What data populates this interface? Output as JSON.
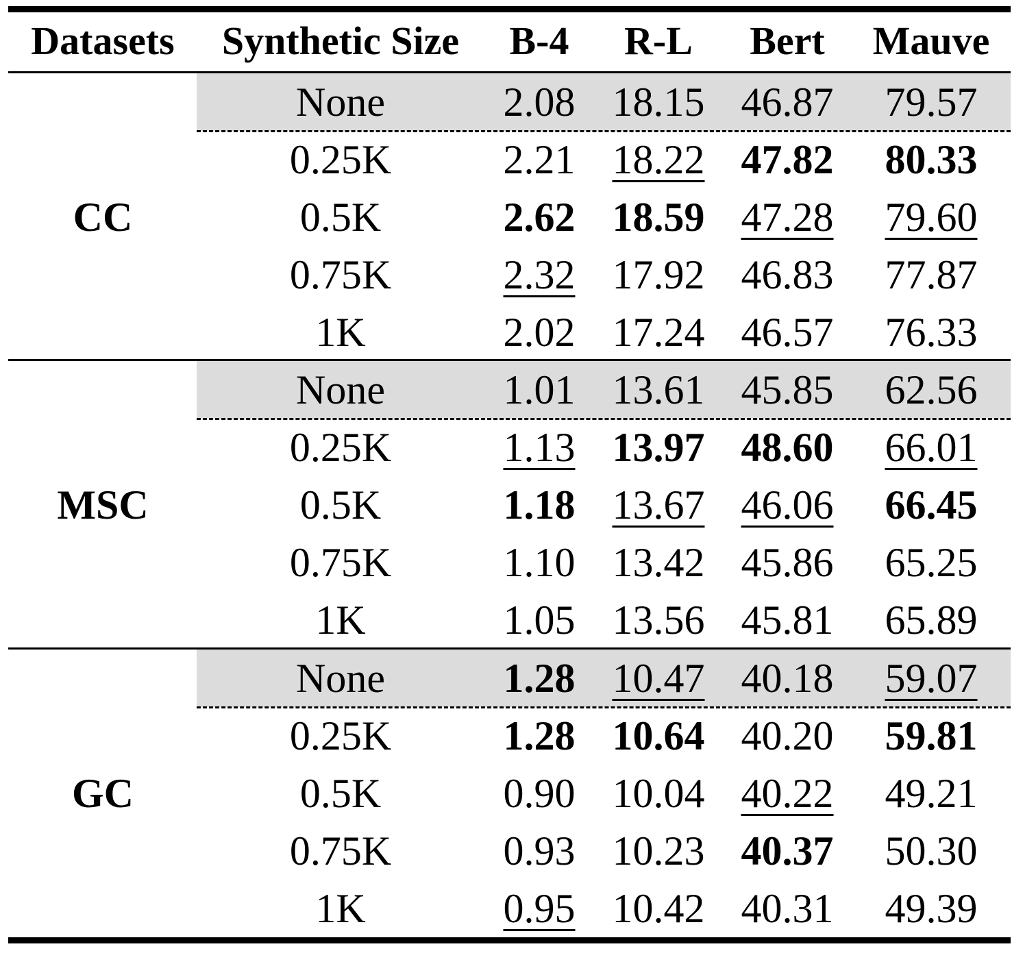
{
  "table": {
    "headers": [
      "Datasets",
      "Synthetic Size",
      "B-4",
      "R-L",
      "Bert",
      "Mauve"
    ],
    "groups": [
      {
        "dataset": "CC",
        "rows": [
          {
            "size": "None",
            "shaded": true,
            "values": [
              {
                "v": "2.08",
                "bold": false,
                "underline": false
              },
              {
                "v": "18.15",
                "bold": false,
                "underline": false
              },
              {
                "v": "46.87",
                "bold": false,
                "underline": false
              },
              {
                "v": "79.57",
                "bold": false,
                "underline": false
              }
            ]
          },
          {
            "size": "0.25K",
            "shaded": false,
            "values": [
              {
                "v": "2.21",
                "bold": false,
                "underline": false
              },
              {
                "v": "18.22",
                "bold": false,
                "underline": true
              },
              {
                "v": "47.82",
                "bold": true,
                "underline": false
              },
              {
                "v": "80.33",
                "bold": true,
                "underline": false
              }
            ]
          },
          {
            "size": "0.5K",
            "shaded": false,
            "values": [
              {
                "v": "2.62",
                "bold": true,
                "underline": false
              },
              {
                "v": "18.59",
                "bold": true,
                "underline": false
              },
              {
                "v": "47.28",
                "bold": false,
                "underline": true
              },
              {
                "v": "79.60",
                "bold": false,
                "underline": true
              }
            ]
          },
          {
            "size": "0.75K",
            "shaded": false,
            "values": [
              {
                "v": "2.32",
                "bold": false,
                "underline": true
              },
              {
                "v": "17.92",
                "bold": false,
                "underline": false
              },
              {
                "v": "46.83",
                "bold": false,
                "underline": false
              },
              {
                "v": "77.87",
                "bold": false,
                "underline": false
              }
            ]
          },
          {
            "size": "1K",
            "shaded": false,
            "values": [
              {
                "v": "2.02",
                "bold": false,
                "underline": false
              },
              {
                "v": "17.24",
                "bold": false,
                "underline": false
              },
              {
                "v": "46.57",
                "bold": false,
                "underline": false
              },
              {
                "v": "76.33",
                "bold": false,
                "underline": false
              }
            ]
          }
        ]
      },
      {
        "dataset": "MSC",
        "rows": [
          {
            "size": "None",
            "shaded": true,
            "values": [
              {
                "v": "1.01",
                "bold": false,
                "underline": false
              },
              {
                "v": "13.61",
                "bold": false,
                "underline": false
              },
              {
                "v": "45.85",
                "bold": false,
                "underline": false
              },
              {
                "v": "62.56",
                "bold": false,
                "underline": false
              }
            ]
          },
          {
            "size": "0.25K",
            "shaded": false,
            "values": [
              {
                "v": "1.13",
                "bold": false,
                "underline": true
              },
              {
                "v": "13.97",
                "bold": true,
                "underline": false
              },
              {
                "v": "48.60",
                "bold": true,
                "underline": false
              },
              {
                "v": "66.01",
                "bold": false,
                "underline": true
              }
            ]
          },
          {
            "size": "0.5K",
            "shaded": false,
            "values": [
              {
                "v": "1.18",
                "bold": true,
                "underline": false
              },
              {
                "v": "13.67",
                "bold": false,
                "underline": true
              },
              {
                "v": "46.06",
                "bold": false,
                "underline": true
              },
              {
                "v": "66.45",
                "bold": true,
                "underline": false
              }
            ]
          },
          {
            "size": "0.75K",
            "shaded": false,
            "values": [
              {
                "v": "1.10",
                "bold": false,
                "underline": false
              },
              {
                "v": "13.42",
                "bold": false,
                "underline": false
              },
              {
                "v": "45.86",
                "bold": false,
                "underline": false
              },
              {
                "v": "65.25",
                "bold": false,
                "underline": false
              }
            ]
          },
          {
            "size": "1K",
            "shaded": false,
            "values": [
              {
                "v": "1.05",
                "bold": false,
                "underline": false
              },
              {
                "v": "13.56",
                "bold": false,
                "underline": false
              },
              {
                "v": "45.81",
                "bold": false,
                "underline": false
              },
              {
                "v": "65.89",
                "bold": false,
                "underline": false
              }
            ]
          }
        ]
      },
      {
        "dataset": "GC",
        "rows": [
          {
            "size": "None",
            "shaded": true,
            "values": [
              {
                "v": "1.28",
                "bold": true,
                "underline": false
              },
              {
                "v": "10.47",
                "bold": false,
                "underline": true
              },
              {
                "v": "40.18",
                "bold": false,
                "underline": false
              },
              {
                "v": "59.07",
                "bold": false,
                "underline": true
              }
            ]
          },
          {
            "size": "0.25K",
            "shaded": false,
            "values": [
              {
                "v": "1.28",
                "bold": true,
                "underline": false
              },
              {
                "v": "10.64",
                "bold": true,
                "underline": false
              },
              {
                "v": "40.20",
                "bold": false,
                "underline": false
              },
              {
                "v": "59.81",
                "bold": true,
                "underline": false
              }
            ]
          },
          {
            "size": "0.5K",
            "shaded": false,
            "values": [
              {
                "v": "0.90",
                "bold": false,
                "underline": false
              },
              {
                "v": "10.04",
                "bold": false,
                "underline": false
              },
              {
                "v": "40.22",
                "bold": false,
                "underline": true
              },
              {
                "v": "49.21",
                "bold": false,
                "underline": false
              }
            ]
          },
          {
            "size": "0.75K",
            "shaded": false,
            "values": [
              {
                "v": "0.93",
                "bold": false,
                "underline": false
              },
              {
                "v": "10.23",
                "bold": false,
                "underline": false
              },
              {
                "v": "40.37",
                "bold": true,
                "underline": false
              },
              {
                "v": "50.30",
                "bold": false,
                "underline": false
              }
            ]
          },
          {
            "size": "1K",
            "shaded": false,
            "values": [
              {
                "v": "0.95",
                "bold": false,
                "underline": true
              },
              {
                "v": "10.42",
                "bold": false,
                "underline": false
              },
              {
                "v": "40.31",
                "bold": false,
                "underline": false
              },
              {
                "v": "49.39",
                "bold": false,
                "underline": false
              }
            ]
          }
        ]
      }
    ]
  }
}
